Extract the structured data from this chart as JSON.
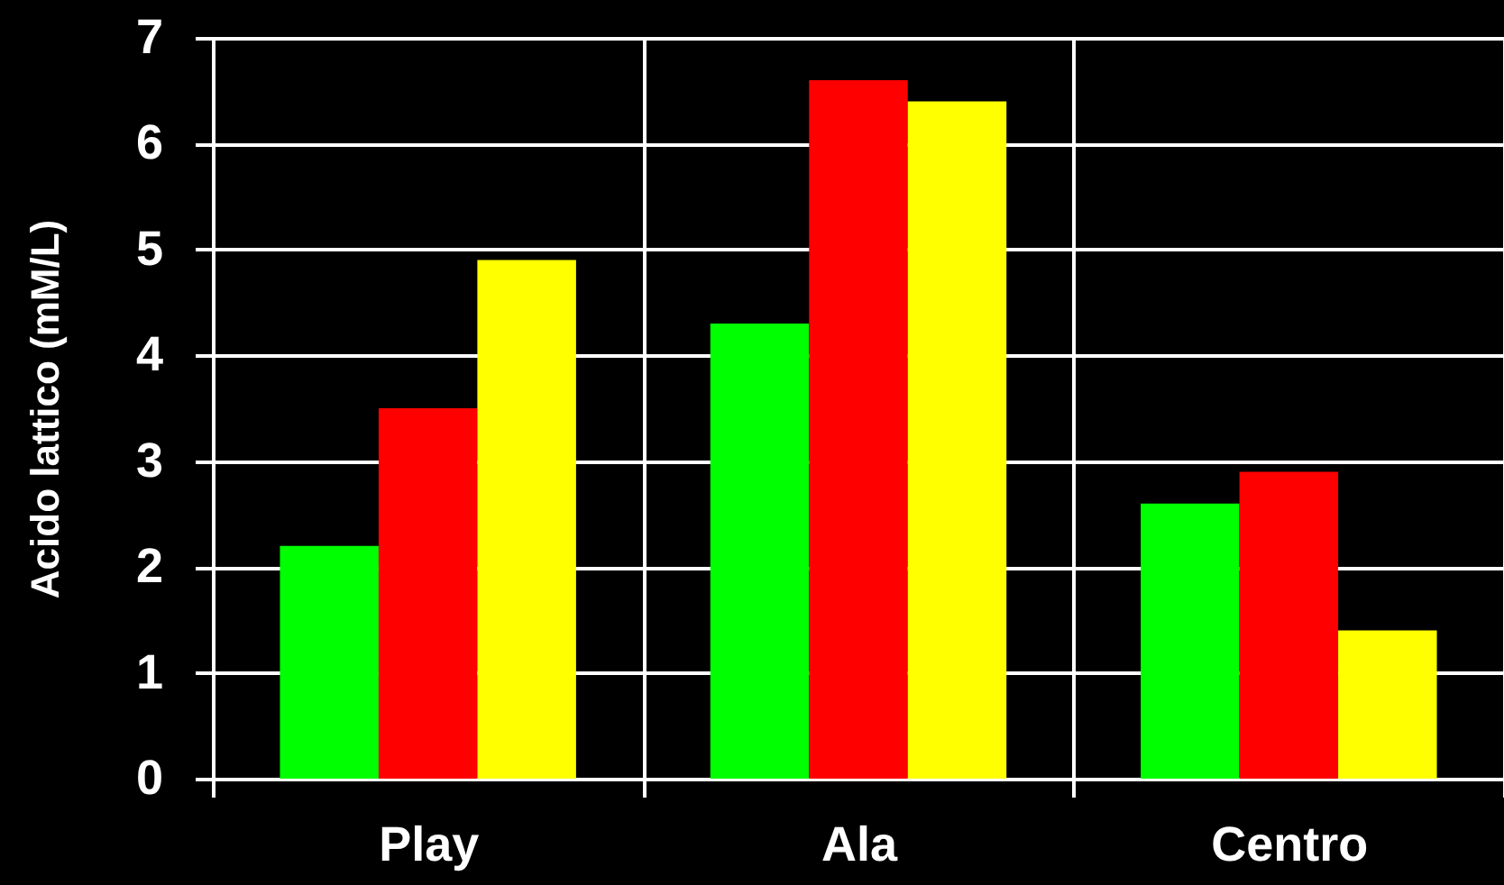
{
  "chart_data": {
    "type": "bar",
    "ylabel": "Acido lattico (mM/L)",
    "categories": [
      "Play",
      "Ala",
      "Centro"
    ],
    "series": [
      {
        "color": "#00ff00",
        "values": [
          2.2,
          4.3,
          2.6
        ]
      },
      {
        "color": "#ff0000",
        "values": [
          3.5,
          6.6,
          2.9
        ]
      },
      {
        "color": "#ffff00",
        "values": [
          4.9,
          6.4,
          1.4
        ]
      }
    ],
    "ylim": [
      0,
      7
    ],
    "yticks": [
      0,
      1,
      2,
      3,
      4,
      5,
      6,
      7
    ],
    "grid": true
  }
}
